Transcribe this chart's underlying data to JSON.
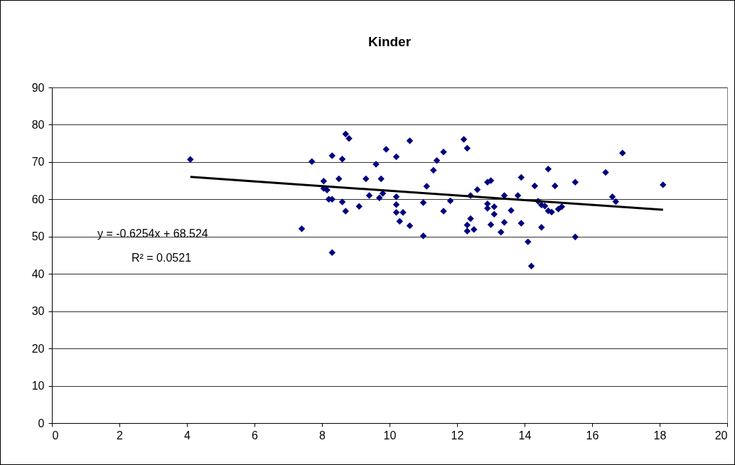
{
  "chart_data": {
    "type": "scatter",
    "title": "Kinder",
    "grid": "y",
    "xlim": [
      0,
      20
    ],
    "xticks": [
      0,
      2,
      4,
      6,
      8,
      10,
      12,
      14,
      16,
      18,
      20
    ],
    "ylim": [
      0,
      90
    ],
    "yticks": [
      0,
      10,
      20,
      30,
      40,
      50,
      60,
      70,
      80,
      90
    ],
    "annotations": [
      "y = -0.6254x + 68.524",
      "R² = 0.0521"
    ],
    "series": [
      {
        "marker": "diamond",
        "color": "#000080",
        "x": [
          4.1,
          7.4,
          7.7,
          8.05,
          8.05,
          8.15,
          8.2,
          8.3,
          8.3,
          8.3,
          8.5,
          8.6,
          8.6,
          8.7,
          8.8,
          8.7,
          9.1,
          9.3,
          9.4,
          9.6,
          9.7,
          9.8,
          9.75,
          9.9,
          10.2,
          10.2,
          10.2,
          10.2,
          10.3,
          10.4,
          10.6,
          10.6,
          11.0,
          11.0,
          11.1,
          11.3,
          11.4,
          11.6,
          11.6,
          11.8,
          12.2,
          12.3,
          12.4,
          12.3,
          12.3,
          12.4,
          12.5,
          12.6,
          12.9,
          12.9,
          12.9,
          13.0,
          13.0,
          13.1,
          13.1,
          13.3,
          13.4,
          13.4,
          13.6,
          13.8,
          13.9,
          13.9,
          14.1,
          14.2,
          14.3,
          14.4,
          14.5,
          14.5,
          14.6,
          14.7,
          14.7,
          14.8,
          14.9,
          15.0,
          15.1,
          15.5,
          15.5,
          16.4,
          16.6,
          16.7,
          16.9,
          18.1
        ],
        "values": [
          70.7,
          52.1,
          70.1,
          64.9,
          62.9,
          62.5,
          60,
          71.7,
          60,
          45.7,
          65.5,
          70.8,
          59.3,
          77.5,
          76.3,
          56.8,
          58.1,
          65.5,
          61,
          69.4,
          60.4,
          61.6,
          65.5,
          73.4,
          71.4,
          60.7,
          58.6,
          56.5,
          54.1,
          56.5,
          75.7,
          52.9,
          59.1,
          50.2,
          63.5,
          67.8,
          70.4,
          72.7,
          56.8,
          59.6,
          76.1,
          73.7,
          61,
          53.1,
          51.5,
          54.8,
          51.9,
          62.6,
          64.6,
          58.8,
          57.6,
          65,
          53.2,
          58,
          56,
          51.2,
          61,
          53.8,
          57,
          61,
          65.9,
          53.6,
          48.6,
          42.1,
          63.6,
          59.5,
          58.5,
          52.5,
          58.2,
          68.1,
          56.9,
          56.6,
          63.6,
          57.4,
          58,
          64.6,
          49.9,
          67.2,
          60.7,
          59.4,
          72.4,
          63.9
        ]
      },
      {
        "type": "line",
        "color": "#000000",
        "x": [
          4.1,
          18.1
        ],
        "values": [
          66.0,
          57.2
        ]
      }
    ]
  }
}
